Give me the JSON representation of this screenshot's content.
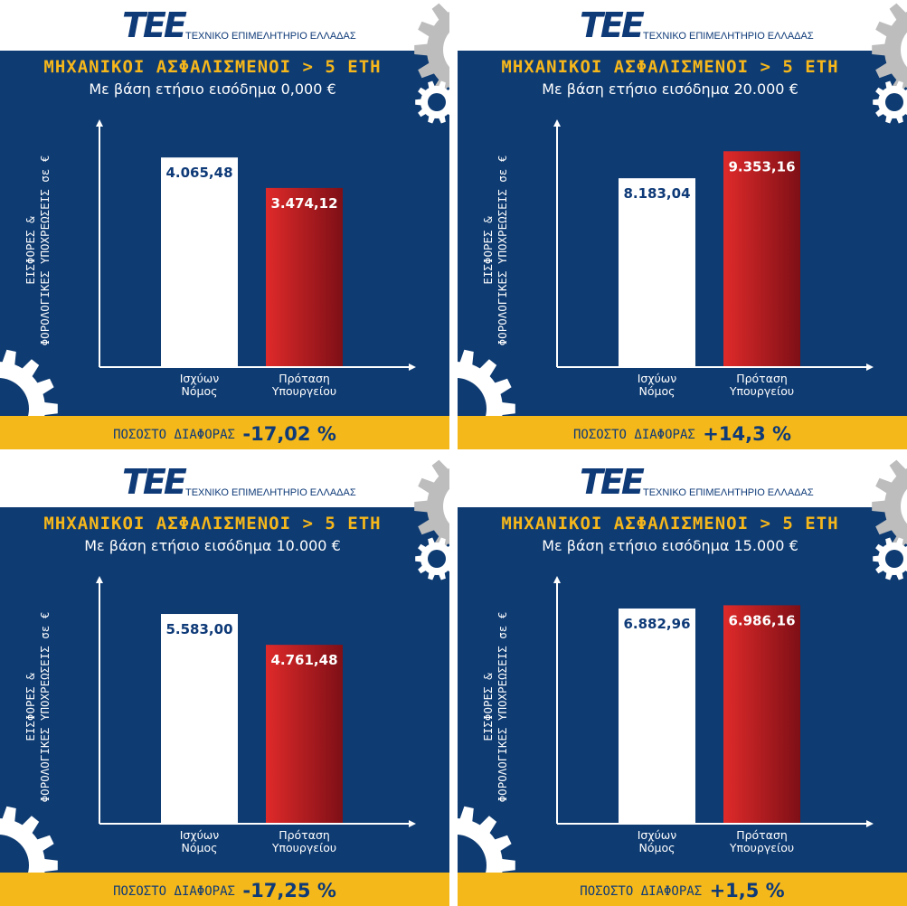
{
  "logo": {
    "mark": "TEE",
    "text": "ΤΕΧΝΙΚΟ ΕΠΙΜΕΛΗΤΗΡΙΟ ΕΛΛΑΔΑΣ"
  },
  "colors": {
    "navy": "#0e3b72",
    "gold": "#f5b81a",
    "red_bar": "#c0191c",
    "white_bar": "#ffffff"
  },
  "icons": [
    "gear-icon"
  ],
  "panels": [
    {
      "title": "ΜΗΧΑΝΙΚΟΙ ΑΣΦΑΛΙΣΜΕΝΟΙ > 5 ΕΤΗ",
      "subtitle": "Με βάση ετήσιο εισόδημα 0,000 €",
      "ylabel_line1": "ΕΙΣΦΟΡΕΣ &",
      "ylabel_line2": "ΦΟΡΟΛΟΓΙΚΕΣ ΥΠΟΧΡΕΩΣΕΙΣ σε €",
      "diff_label": "ΠΟΣΟΣΤΟ ΔΙΑΦΟΡΑΣ",
      "diff_value": "-17,02 %",
      "categories": [
        "Ισχύων Νόμος",
        "Πρόταση Υπουργείου"
      ],
      "category_lines": [
        [
          "Ισχύων",
          "Νόμος"
        ],
        [
          "Πρόταση",
          "Υπουργείου"
        ]
      ],
      "value_labels": [
        "4.065,48",
        "3.474,12"
      ]
    },
    {
      "title": "ΜΗΧΑΝΙΚΟΙ ΑΣΦΑΛΙΣΜΕΝΟΙ > 5 ΕΤΗ",
      "subtitle": "Με βάση ετήσιο εισόδημα 20.000 €",
      "ylabel_line1": "ΕΙΣΦΟΡΕΣ &",
      "ylabel_line2": "ΦΟΡΟΛΟΓΙΚΕΣ ΥΠΟΧΡΕΩΣΕΙΣ σε €",
      "diff_label": "ΠΟΣΟΣΤΟ ΔΙΑΦΟΡΑΣ",
      "diff_value": "+14,3 %",
      "categories": [
        "Ισχύων Νόμος",
        "Πρόταση Υπουργείου"
      ],
      "category_lines": [
        [
          "Ισχύων",
          "Νόμος"
        ],
        [
          "Πρόταση",
          "Υπουργείου"
        ]
      ],
      "value_labels": [
        "8.183,04",
        "9.353,16"
      ]
    },
    {
      "title": "ΜΗΧΑΝΙΚΟΙ ΑΣΦΑΛΙΣΜΕΝΟΙ > 5 ΕΤΗ",
      "subtitle": "Με βάση ετήσιο εισόδημα 10.000 €",
      "ylabel_line1": "ΕΙΣΦΟΡΕΣ &",
      "ylabel_line2": "ΦΟΡΟΛΟΓΙΚΕΣ ΥΠΟΧΡΕΩΣΕΙΣ σε €",
      "diff_label": "ΠΟΣΟΣΤΟ ΔΙΑΦΟΡΑΣ",
      "diff_value": "-17,25 %",
      "categories": [
        "Ισχύων Νόμος",
        "Πρόταση Υπουργείου"
      ],
      "category_lines": [
        [
          "Ισχύων",
          "Νόμος"
        ],
        [
          "Πρόταση",
          "Υπουργείου"
        ]
      ],
      "value_labels": [
        "5.583,00",
        "4.761,48"
      ]
    },
    {
      "title": "ΜΗΧΑΝΙΚΟΙ ΑΣΦΑΛΙΣΜΕΝΟΙ > 5 ΕΤΗ",
      "subtitle": "Με βάση ετήσιο εισόδημα 15.000 €",
      "ylabel_line1": "ΕΙΣΦΟΡΕΣ &",
      "ylabel_line2": "ΦΟΡΟΛΟΓΙΚΕΣ ΥΠΟΧΡΕΩΣΕΙΣ σε €",
      "diff_label": "ΠΟΣΟΣΤΟ ΔΙΑΦΟΡΑΣ",
      "diff_value": "+1,5 %",
      "categories": [
        "Ισχύων Νόμος",
        "Πρόταση Υπουργείου"
      ],
      "category_lines": [
        [
          "Ισχύων",
          "Νόμος"
        ],
        [
          "Πρόταση",
          "Υπουργείου"
        ]
      ],
      "value_labels": [
        "6.882,96",
        "6.986,16"
      ]
    }
  ],
  "chart_data": [
    {
      "type": "bar",
      "title": "ΜΗΧΑΝΙΚΟΙ ΑΣΦΑΛΙΣΜΕΝΟΙ > 5 ΕΤΗ",
      "subtitle": "Με βάση ετήσιο εισόδημα 0,000 €",
      "categories": [
        "Ισχύων Νόμος",
        "Πρόταση Υπουργείου"
      ],
      "values": [
        4065.48,
        3474.12
      ],
      "ylabel": "ΕΙΣΦΟΡΕΣ & ΦΟΡΟΛΟΓΙΚΕΣ ΥΠΟΧΡΕΩΣΕΙΣ σε €",
      "xlabel": "",
      "ylim": [
        0,
        4700
      ],
      "grid": false
    },
    {
      "type": "bar",
      "title": "ΜΗΧΑΝΙΚΟΙ ΑΣΦΑΛΙΣΜΕΝΟΙ > 5 ΕΤΗ",
      "subtitle": "Με βάση ετήσιο εισόδημα 20.000 €",
      "categories": [
        "Ισχύων Νόμος",
        "Πρόταση Υπουργείου"
      ],
      "values": [
        8183.04,
        9353.16
      ],
      "ylabel": "ΕΙΣΦΟΡΕΣ & ΦΟΡΟΛΟΓΙΚΕΣ ΥΠΟΧΡΕΩΣΕΙΣ σε €",
      "xlabel": "",
      "ylim": [
        0,
        10500
      ],
      "grid": false
    },
    {
      "type": "bar",
      "title": "ΜΗΧΑΝΙΚΟΙ ΑΣΦΑΛΙΣΜΕΝΟΙ > 5 ΕΤΗ",
      "subtitle": "Με βάση ετήσιο εισόδημα 10.000 €",
      "categories": [
        "Ισχύων Νόμος",
        "Πρόταση Υπουργείου"
      ],
      "values": [
        5583.0,
        4761.48
      ],
      "ylabel": "ΕΙΣΦΟΡΕΣ & ΦΟΡΟΛΟΓΙΚΕΣ ΥΠΟΧΡΕΩΣΕΙΣ σε €",
      "xlabel": "",
      "ylim": [
        0,
        6450
      ],
      "grid": false
    },
    {
      "type": "bar",
      "title": "ΜΗΧΑΝΙΚΟΙ ΑΣΦΑΛΙΣΜΕΝΟΙ > 5 ΕΤΗ",
      "subtitle": "Με βάση ετήσιο εισόδημα 15.000 €",
      "categories": [
        "Ισχύων Νόμος",
        "Πρόταση Υπουργείου"
      ],
      "values": [
        6882.96,
        6986.16
      ],
      "ylabel": "ΕΙΣΦΟΡΕΣ & ΦΟΡΟΛΟΓΙΚΕΣ ΥΠΟΧΡΕΩΣΕΙΣ σε €",
      "xlabel": "",
      "ylim": [
        0,
        7750
      ],
      "grid": false
    }
  ]
}
